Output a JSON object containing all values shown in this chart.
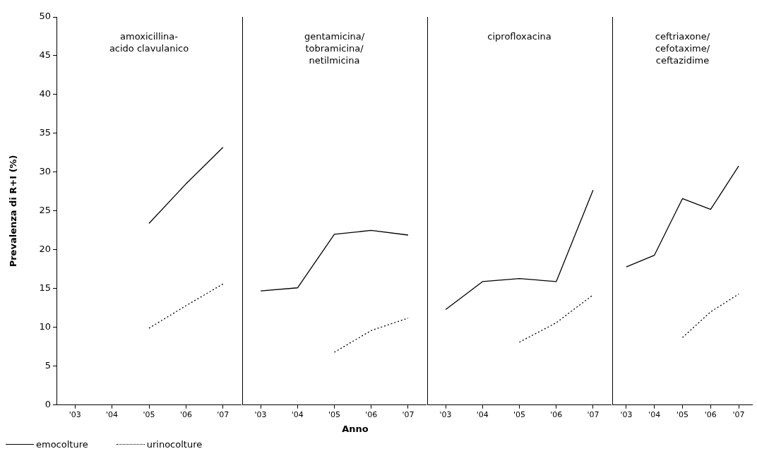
{
  "chart_data": [
    {
      "type": "line",
      "title": "amoxicillina-\nacido clavulanico",
      "ylabel": "Prevalenza di R+I (%)",
      "legend": "bottom left",
      "categories": [
        "'03",
        "'04",
        "'05",
        "'06",
        "'07"
      ],
      "ylim": [
        0,
        50
      ],
      "yticks": [
        0,
        5,
        10,
        15,
        20,
        25,
        30,
        35,
        40,
        45,
        50
      ],
      "grid": false,
      "marker": "none",
      "series": [
        {
          "name": "emocolture",
          "color": "#000000",
          "line_style": "solid",
          "values": [
            null,
            null,
            23.4,
            28.5,
            33.2
          ]
        },
        {
          "name": "urinocolture",
          "color": "#000000",
          "line_style": "dotted",
          "values": [
            null,
            null,
            9.9,
            12.8,
            15.6
          ]
        }
      ]
    },
    {
      "type": "line",
      "title": "gentamicina/\ntobramicina/\nnetilmicina",
      "xlabel": "Anno",
      "categories": [
        "'03",
        "'04",
        "'05",
        "'06",
        "'07"
      ],
      "ylim": [
        0,
        50
      ],
      "yticks": [
        0,
        5,
        10,
        15,
        20,
        25,
        30,
        35,
        40,
        45,
        50
      ],
      "tick_labels": "x",
      "grid": false,
      "marker": "none",
      "series": [
        {
          "color": "#000000",
          "line_style": "solid",
          "values": [
            14.7,
            15.1,
            22,
            22.5,
            21.9
          ]
        },
        {
          "color": "#000000",
          "line_style": "dotted",
          "values": [
            null,
            null,
            6.8,
            9.6,
            11.2
          ]
        }
      ]
    },
    {
      "type": "line",
      "title": "ciprofloxacina",
      "categories": [
        "'03",
        "'04",
        "'05",
        "'06",
        "'07"
      ],
      "ylim": [
        0,
        50
      ],
      "yticks": [
        0,
        5,
        10,
        15,
        20,
        25,
        30,
        35,
        40,
        45,
        50
      ],
      "tick_labels": "x",
      "grid": false,
      "marker": "none",
      "series": [
        {
          "color": "#000000",
          "line_style": "solid",
          "values": [
            12.3,
            15.9,
            16.3,
            15.9,
            27.7
          ]
        },
        {
          "color": "#000000",
          "line_style": "dotted",
          "values": [
            null,
            null,
            8.1,
            10.6,
            14.2
          ]
        }
      ]
    },
    {
      "type": "line",
      "title": "ceftriaxone/\ncefotaxime/\nceftazidime",
      "categories": [
        "'03",
        "'04",
        "'05",
        "'06",
        "'07"
      ],
      "ylim": [
        0,
        50
      ],
      "yticks": [
        0,
        5,
        10,
        15,
        20,
        25,
        30,
        35,
        40,
        45,
        50
      ],
      "tick_labels": "x",
      "grid": false,
      "marker": "none",
      "series": [
        {
          "color": "#000000",
          "line_style": "solid",
          "values": [
            17.8,
            19.3,
            26.6,
            25.2,
            30.8
          ]
        },
        {
          "color": "#000000",
          "line_style": "dotted",
          "values": [
            null,
            null,
            8.7,
            12,
            14.3
          ]
        }
      ]
    }
  ]
}
